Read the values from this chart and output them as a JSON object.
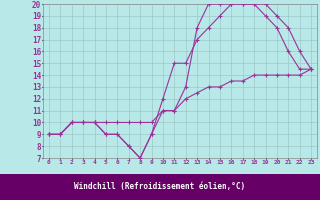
{
  "bg_color": "#b8e8e8",
  "grid_color": "#9ec8c8",
  "line_color": "#993399",
  "xlabel": "Windchill (Refroidissement éolien,°C)",
  "xlabel_bg": "#660066",
  "xlabel_fg": "#ffffff",
  "xlim": [
    -0.5,
    23.5
  ],
  "ylim": [
    7,
    20
  ],
  "yticks": [
    7,
    8,
    9,
    10,
    11,
    12,
    13,
    14,
    15,
    16,
    17,
    18,
    19,
    20
  ],
  "xticks": [
    0,
    1,
    2,
    3,
    4,
    5,
    6,
    7,
    8,
    9,
    10,
    11,
    12,
    13,
    14,
    15,
    16,
    17,
    18,
    19,
    20,
    21,
    22,
    23
  ],
  "line1_x": [
    0,
    1,
    2,
    3,
    4,
    5,
    6,
    7,
    8,
    9,
    10,
    11,
    12,
    13,
    14,
    15,
    16,
    17,
    18,
    19,
    20,
    21,
    22,
    23
  ],
  "line1_y": [
    9,
    9,
    10,
    10,
    10,
    9,
    9,
    8,
    7,
    9,
    11,
    11,
    13,
    18,
    20,
    20,
    20,
    20,
    20,
    19,
    18,
    16,
    14.5,
    14.5
  ],
  "line2_x": [
    0,
    1,
    2,
    3,
    4,
    5,
    6,
    7,
    8,
    9,
    10,
    11,
    12,
    13,
    14,
    15,
    16,
    17,
    18,
    19,
    20,
    21,
    22,
    23
  ],
  "line2_y": [
    9,
    9,
    10,
    10,
    10,
    9,
    9,
    8,
    7,
    9,
    12,
    15,
    15,
    17,
    18,
    19,
    20,
    20,
    20,
    20,
    19,
    18,
    16,
    14.5
  ],
  "line3_x": [
    0,
    1,
    2,
    3,
    4,
    5,
    6,
    7,
    8,
    9,
    10,
    11,
    12,
    13,
    14,
    15,
    16,
    17,
    18,
    19,
    20,
    21,
    22,
    23
  ],
  "line3_y": [
    9,
    9,
    10,
    10,
    10,
    10,
    10,
    10,
    10,
    10,
    11,
    11,
    12,
    12.5,
    13,
    13,
    13.5,
    13.5,
    14,
    14,
    14,
    14,
    14,
    14.5
  ],
  "markersize": 3,
  "linewidth": 0.8
}
